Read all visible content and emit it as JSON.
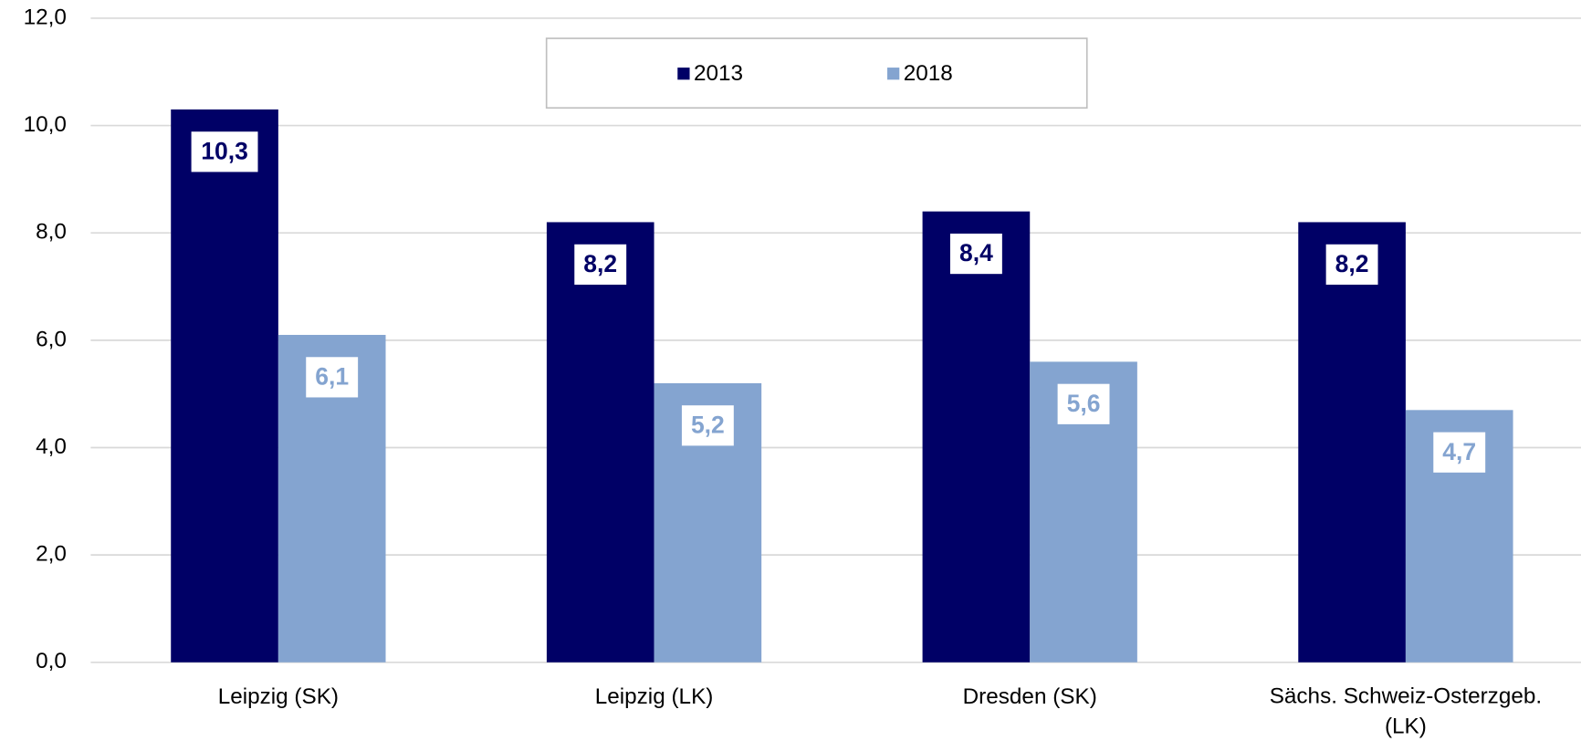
{
  "chart_data": {
    "type": "bar",
    "categories": [
      "Leipzig (SK)",
      "Leipzig (LK)",
      "Dresden (SK)",
      "Sächs. Schweiz-Osterzgeb. (LK)"
    ],
    "series": [
      {
        "name": "2013",
        "color": "#000066",
        "values": [
          10.3,
          8.2,
          8.4,
          8.2
        ],
        "value_labels": [
          "10,3",
          "8,2",
          "8,4",
          "8,2"
        ]
      },
      {
        "name": "2018",
        "color": "#84a4d0",
        "values": [
          6.1,
          5.2,
          5.6,
          4.7
        ],
        "value_labels": [
          "6,1",
          "5,2",
          "5,6",
          "4,7"
        ]
      }
    ],
    "ylim": [
      0,
      12
    ],
    "yticks": [
      {
        "value": 0,
        "label": "0,0"
      },
      {
        "value": 2,
        "label": "2,0"
      },
      {
        "value": 4,
        "label": "4,0"
      },
      {
        "value": 6,
        "label": "6,0"
      },
      {
        "value": 8,
        "label": "8,0"
      },
      {
        "value": 10,
        "label": "10,0"
      },
      {
        "value": 12,
        "label": "12,0"
      }
    ],
    "grid": true,
    "legend": "top"
  }
}
